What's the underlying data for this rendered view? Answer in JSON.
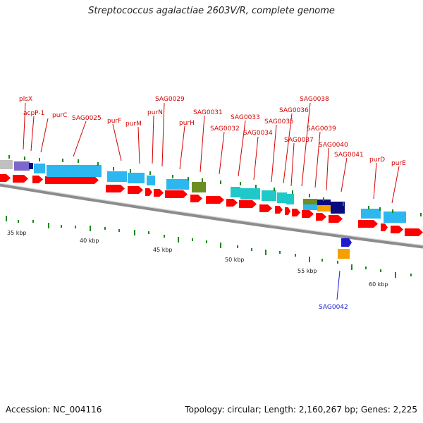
{
  "title": "Streptococcus agalactiae 2603V/R, complete genome",
  "footer": {
    "accession": "Accession: NC_004116",
    "summary": "Topology: circular; Length: 2,160,267 bp; Genes: 2,225"
  },
  "gene_labels": [
    "plsX",
    "acpP-1",
    "purC",
    "SAG0025",
    "purF",
    "purM",
    "purN",
    "SAG0029",
    "purH",
    "SAG0031",
    "SAG0032",
    "SAG0033",
    "SAG0034",
    "SAG0035",
    "SAG0036",
    "SAG0037",
    "SAG0038",
    "SAG0039",
    "SAG0040",
    "SAG0041",
    "purD",
    "purE"
  ],
  "highlight_label": "SAG0042",
  "kbp_labels": [
    "35 kbp",
    "40 kbp",
    "45 kbp",
    "50 kbp",
    "55 kbp",
    "60 kbp"
  ],
  "colors": {
    "forward_gene": "#ff0000",
    "cog_blue": "#2db7f0",
    "cog_teal": "#1fc9c9",
    "cog_olive": "#6b8e23",
    "cog_purple": "#7b68c8",
    "cog_grey": "#c0c0c0",
    "cog_navy": "#0a0a80",
    "cog_orange": "#f5a000",
    "highlight_blue": "#1b1bd0",
    "label_red": "#d40000",
    "tick_green": "#1a8a1a",
    "backbone": "#8c8c8c"
  }
}
